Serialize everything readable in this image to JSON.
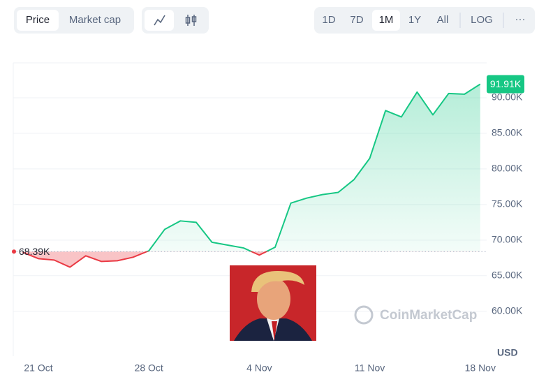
{
  "toolbar": {
    "metrics": [
      "Price",
      "Market cap"
    ],
    "ranges": [
      "1D",
      "7D",
      "1M",
      "1Y",
      "All"
    ],
    "scale": "LOG",
    "more": "···"
  },
  "chart_data": {
    "type": "line",
    "categories": [
      null,
      "21 Oct",
      null,
      null,
      null,
      null,
      null,
      null,
      "28 Oct",
      null,
      null,
      null,
      null,
      null,
      null,
      "4 Nov",
      null,
      null,
      null,
      null,
      null,
      null,
      "11 Nov",
      null,
      null,
      null,
      null,
      null,
      null,
      "18 Nov"
    ],
    "series": [
      {
        "name": "Price",
        "color": "#16c784",
        "color_below": "#ea3943",
        "values": [
          68300,
          67400,
          67200,
          66200,
          67800,
          67000,
          67100,
          67600,
          68500,
          71500,
          72700,
          72500,
          69700,
          69300,
          68900,
          67900,
          69000,
          75200,
          75900,
          76400,
          76700,
          78500,
          81500,
          88200,
          87300,
          90800,
          87600,
          90600,
          90500,
          91910
        ]
      }
    ],
    "ylim": [
      53700,
      94900
    ],
    "yticks": [
      {
        "value": 60000,
        "label": "60.00K"
      },
      {
        "value": 65000,
        "label": "65.00K"
      },
      {
        "value": 70000,
        "label": "70.00K"
      },
      {
        "value": 75000,
        "label": "75.00K"
      },
      {
        "value": 80000,
        "label": "80.00K"
      },
      {
        "value": 85000,
        "label": "85.00K"
      },
      {
        "value": 90000,
        "label": "90.00K"
      }
    ],
    "y_unit": "USD",
    "reference_line": {
      "value": 68390,
      "label": "68.39K"
    },
    "current_price": {
      "value": 91910,
      "label": "91.91K"
    },
    "watermark": "CoinMarketCap",
    "grid": true
  }
}
